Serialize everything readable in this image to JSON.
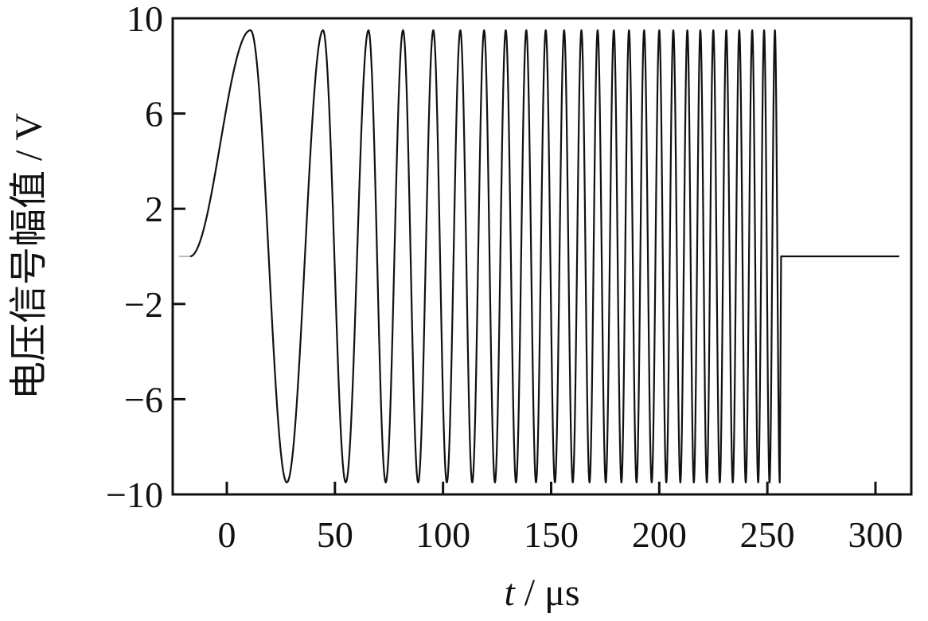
{
  "chart_data": {
    "type": "line",
    "title": "",
    "xlabel_italic": "t",
    "xlabel_rest": " / μs",
    "ylabel": "电压信号幅值 / V",
    "xlim": [
      -20,
      315
    ],
    "ylim": [
      -10,
      10
    ],
    "x_ticks": [
      0,
      50,
      100,
      150,
      200,
      250,
      300
    ],
    "x_tick_labels": [
      "0",
      "50",
      "100",
      "150",
      "200",
      "250",
      "300"
    ],
    "y_ticks": [
      -10,
      -6,
      -2,
      2,
      6,
      10
    ],
    "y_tick_labels": [
      "−10",
      "−6",
      "−2",
      "2",
      "6",
      "10"
    ],
    "grid": false,
    "legend": "none",
    "color": "#111111",
    "series": [
      {
        "description_note": "",
        "signal": {
          "kind": "linear-chirp",
          "amplitude": 9.5,
          "offset": 0,
          "t_start": -17,
          "t_end": 256,
          "hold_value_after_end": 0,
          "hold_until": 311,
          "peak_times": [
            11,
            44.5,
            65.5,
            81.5,
            95.5,
            108,
            119,
            129,
            138.5,
            147.5,
            156,
            164,
            171.5,
            179,
            186,
            193,
            200,
            206.5,
            213,
            219,
            225,
            231,
            237,
            243,
            248.5,
            253.5
          ]
        }
      }
    ]
  }
}
